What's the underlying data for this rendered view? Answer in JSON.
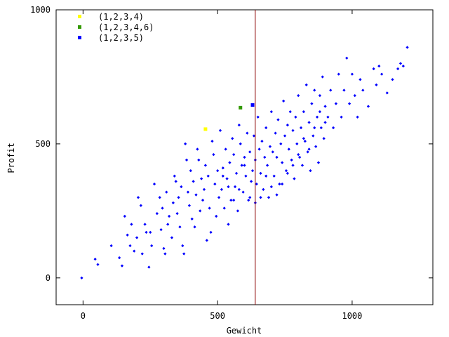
{
  "chart_data": {
    "type": "scatter",
    "title": "",
    "xlabel": "Gewicht",
    "ylabel": "Profit",
    "xlim": [
      -100,
      1300
    ],
    "ylim": [
      -100,
      1000
    ],
    "xticks": [
      0,
      500,
      1000
    ],
    "yticks": [
      0,
      500,
      1000
    ],
    "grid": false,
    "legend_position": "top-left",
    "vertical_line": {
      "x": 640,
      "color": "#8b0000"
    },
    "series": [
      {
        "name": "(1,2,3,4)",
        "color": "#ffff00",
        "points": [
          [
            455,
            555
          ]
        ]
      },
      {
        "name": "(1,2,3,4,6)",
        "color": "#339900",
        "points": [
          [
            585,
            635
          ]
        ]
      },
      {
        "name": "(1,2,3,5)",
        "color": "#0000ff",
        "points": [
          [
            630,
            645
          ]
        ]
      },
      {
        "name": "",
        "color": "#0000ff",
        "points": [
          [
            -5,
            0
          ],
          [
            45,
            70
          ],
          [
            55,
            50
          ],
          [
            105,
            120
          ],
          [
            135,
            75
          ],
          [
            145,
            45
          ],
          [
            155,
            230
          ],
          [
            165,
            160
          ],
          [
            175,
            120
          ],
          [
            180,
            200
          ],
          [
            190,
            100
          ],
          [
            200,
            150
          ],
          [
            205,
            300
          ],
          [
            215,
            270
          ],
          [
            220,
            90
          ],
          [
            230,
            200
          ],
          [
            235,
            170
          ],
          [
            245,
            40
          ],
          [
            250,
            170
          ],
          [
            255,
            120
          ],
          [
            265,
            350
          ],
          [
            275,
            240
          ],
          [
            285,
            300
          ],
          [
            290,
            180
          ],
          [
            295,
            260
          ],
          [
            300,
            110
          ],
          [
            305,
            90
          ],
          [
            310,
            320
          ],
          [
            315,
            200
          ],
          [
            320,
            230
          ],
          [
            330,
            150
          ],
          [
            335,
            280
          ],
          [
            340,
            380
          ],
          [
            345,
            360
          ],
          [
            350,
            240
          ],
          [
            355,
            300
          ],
          [
            360,
            190
          ],
          [
            365,
            340
          ],
          [
            370,
            120
          ],
          [
            375,
            90
          ],
          [
            380,
            500
          ],
          [
            385,
            440
          ],
          [
            390,
            320
          ],
          [
            395,
            270
          ],
          [
            400,
            400
          ],
          [
            405,
            220
          ],
          [
            410,
            360
          ],
          [
            415,
            190
          ],
          [
            420,
            310
          ],
          [
            425,
            480
          ],
          [
            430,
            440
          ],
          [
            435,
            250
          ],
          [
            440,
            370
          ],
          [
            445,
            290
          ],
          [
            450,
            330
          ],
          [
            455,
            420
          ],
          [
            460,
            140
          ],
          [
            465,
            380
          ],
          [
            470,
            260
          ],
          [
            475,
            170
          ],
          [
            480,
            510
          ],
          [
            485,
            460
          ],
          [
            490,
            350
          ],
          [
            495,
            230
          ],
          [
            500,
            400
          ],
          [
            505,
            300
          ],
          [
            510,
            550
          ],
          [
            515,
            330
          ],
          [
            520,
            410
          ],
          [
            525,
            260
          ],
          [
            530,
            480
          ],
          [
            535,
            370
          ],
          [
            540,
            200
          ],
          [
            545,
            430
          ],
          [
            550,
            290
          ],
          [
            555,
            520
          ],
          [
            560,
            460
          ],
          [
            565,
            340
          ],
          [
            570,
            390
          ],
          [
            575,
            250
          ],
          [
            580,
            570
          ],
          [
            585,
            500
          ],
          [
            590,
            420
          ],
          [
            595,
            320
          ],
          [
            600,
            450
          ],
          [
            605,
            380
          ],
          [
            610,
            540
          ],
          [
            615,
            290
          ],
          [
            620,
            470
          ],
          [
            625,
            360
          ],
          [
            630,
            400
          ],
          [
            635,
            530
          ],
          [
            640,
            440
          ],
          [
            645,
            350
          ],
          [
            650,
            600
          ],
          [
            655,
            480
          ],
          [
            660,
            390
          ],
          [
            665,
            510
          ],
          [
            670,
            330
          ],
          [
            675,
            450
          ],
          [
            680,
            560
          ],
          [
            685,
            420
          ],
          [
            690,
            300
          ],
          [
            695,
            490
          ],
          [
            700,
            620
          ],
          [
            705,
            470
          ],
          [
            710,
            380
          ],
          [
            715,
            540
          ],
          [
            720,
            450
          ],
          [
            725,
            590
          ],
          [
            730,
            350
          ],
          [
            735,
            500
          ],
          [
            740,
            430
          ],
          [
            745,
            660
          ],
          [
            750,
            530
          ],
          [
            755,
            400
          ],
          [
            760,
            570
          ],
          [
            765,
            480
          ],
          [
            770,
            620
          ],
          [
            775,
            440
          ],
          [
            780,
            550
          ],
          [
            785,
            370
          ],
          [
            790,
            600
          ],
          [
            795,
            500
          ],
          [
            800,
            680
          ],
          [
            805,
            450
          ],
          [
            810,
            560
          ],
          [
            815,
            420
          ],
          [
            820,
            620
          ],
          [
            825,
            510
          ],
          [
            830,
            720
          ],
          [
            835,
            470
          ],
          [
            840,
            580
          ],
          [
            845,
            400
          ],
          [
            850,
            650
          ],
          [
            855,
            530
          ],
          [
            860,
            700
          ],
          [
            865,
            490
          ],
          [
            870,
            600
          ],
          [
            875,
            430
          ],
          [
            880,
            680
          ],
          [
            885,
            560
          ],
          [
            890,
            750
          ],
          [
            895,
            520
          ],
          [
            900,
            640
          ],
          [
            910,
            600
          ],
          [
            920,
            700
          ],
          [
            930,
            560
          ],
          [
            940,
            650
          ],
          [
            950,
            760
          ],
          [
            960,
            600
          ],
          [
            970,
            700
          ],
          [
            980,
            820
          ],
          [
            990,
            650
          ],
          [
            1000,
            760
          ],
          [
            1010,
            680
          ],
          [
            1020,
            600
          ],
          [
            1030,
            740
          ],
          [
            1040,
            700
          ],
          [
            1060,
            640
          ],
          [
            1080,
            780
          ],
          [
            1090,
            720
          ],
          [
            1100,
            790
          ],
          [
            1110,
            760
          ],
          [
            1130,
            690
          ],
          [
            1150,
            740
          ],
          [
            1170,
            780
          ],
          [
            1180,
            800
          ],
          [
            1190,
            790
          ],
          [
            1205,
            860
          ],
          [
            600,
            420
          ],
          [
            620,
            300
          ],
          [
            580,
            330
          ],
          [
            560,
            290
          ],
          [
            540,
            340
          ],
          [
            520,
            380
          ],
          [
            640,
            280
          ],
          [
            660,
            300
          ],
          [
            680,
            380
          ],
          [
            700,
            340
          ],
          [
            720,
            310
          ],
          [
            740,
            350
          ],
          [
            760,
            390
          ],
          [
            780,
            420
          ],
          [
            800,
            460
          ],
          [
            820,
            520
          ],
          [
            840,
            480
          ],
          [
            860,
            560
          ],
          [
            880,
            620
          ],
          [
            900,
            580
          ]
        ]
      }
    ]
  }
}
